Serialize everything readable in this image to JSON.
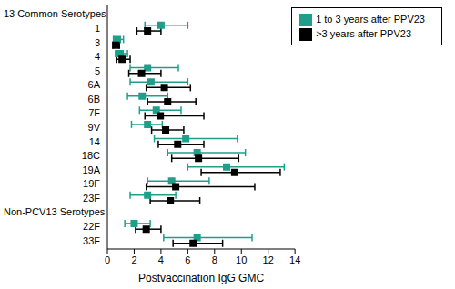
{
  "chart_data": {
    "type": "forest",
    "x_label": "Postvaccination IgG GMC",
    "orientation": "horizontal",
    "grid": false,
    "legend": "top right",
    "xlim": [
      0,
      14
    ],
    "xticks": [
      0,
      2,
      4,
      6,
      8,
      10,
      12,
      14
    ],
    "categories": [
      "13 Common Serotypes",
      "1",
      "3",
      "4",
      "5",
      "6A",
      "6B",
      "7F",
      "9V",
      "14",
      "18C",
      "19A",
      "19F",
      "23F",
      "Non-PCV13 Serotypes",
      "22F",
      "33F"
    ],
    "series": [
      {
        "name": "1 to 3 years after PPV23",
        "color": "#1f9e89",
        "marker": "square",
        "values": [
          null,
          4.0,
          0.75,
          0.95,
          3.0,
          3.25,
          2.6,
          3.65,
          3.0,
          5.85,
          6.7,
          8.9,
          4.8,
          3.0,
          null,
          2.0,
          6.7
        ],
        "ci_low": [
          null,
          2.8,
          0.45,
          0.6,
          1.7,
          1.7,
          1.5,
          2.4,
          1.8,
          3.5,
          4.5,
          6.0,
          3.0,
          1.7,
          null,
          1.3,
          4.2
        ],
        "ci_high": [
          null,
          6.0,
          1.2,
          1.5,
          5.3,
          6.0,
          4.5,
          5.5,
          4.1,
          9.7,
          10.3,
          13.2,
          7.6,
          5.1,
          null,
          3.2,
          10.8
        ]
      },
      {
        "name": ">3 years after PPV23",
        "color": "#000000",
        "marker": "square",
        "values": [
          null,
          3.0,
          0.65,
          1.1,
          2.55,
          4.25,
          4.5,
          3.95,
          4.35,
          5.25,
          6.8,
          9.5,
          5.1,
          4.7,
          null,
          2.9,
          6.4
        ],
        "ci_low": [
          null,
          2.2,
          0.4,
          0.7,
          1.6,
          2.9,
          3.0,
          2.8,
          3.3,
          3.8,
          4.8,
          7.0,
          2.9,
          3.2,
          null,
          2.1,
          4.9
        ],
        "ci_high": [
          null,
          4.0,
          0.9,
          1.7,
          4.0,
          6.2,
          6.6,
          7.2,
          5.7,
          7.2,
          9.8,
          12.9,
          11.0,
          6.9,
          null,
          4.0,
          8.6
        ]
      }
    ]
  }
}
